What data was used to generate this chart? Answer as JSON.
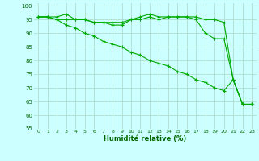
{
  "title": "",
  "xlabel": "Humidité relative (%)",
  "ylabel": "",
  "bg_color": "#ccffff",
  "grid_color": "#b0ddd0",
  "line_color": "#00aa00",
  "marker_color": "#00aa00",
  "ylim": [
    55,
    101
  ],
  "xlim": [
    -0.5,
    23.5
  ],
  "yticks": [
    55,
    60,
    65,
    70,
    75,
    80,
    85,
    90,
    95,
    100
  ],
  "xticks": [
    0,
    1,
    2,
    3,
    4,
    5,
    6,
    7,
    8,
    9,
    10,
    11,
    12,
    13,
    14,
    15,
    16,
    17,
    18,
    19,
    20,
    21,
    22,
    23
  ],
  "xtick_labels": [
    "0",
    "1",
    "2",
    "3",
    "4",
    "5",
    "6",
    "7",
    "8",
    "9",
    "10",
    "11",
    "12",
    "13",
    "14",
    "15",
    "16",
    "17",
    "18",
    "19",
    "20",
    "21",
    "22",
    "23"
  ],
  "series": [
    [
      96,
      96,
      96,
      97,
      95,
      95,
      94,
      94,
      94,
      94,
      95,
      96,
      97,
      96,
      96,
      96,
      96,
      96,
      95,
      95,
      94,
      73,
      64,
      64
    ],
    [
      96,
      96,
      95,
      95,
      95,
      95,
      94,
      94,
      93,
      93,
      95,
      95,
      96,
      95,
      96,
      96,
      96,
      95,
      90,
      88,
      88,
      73,
      64,
      64
    ],
    [
      96,
      96,
      95,
      93,
      92,
      90,
      89,
      87,
      86,
      85,
      83,
      82,
      80,
      79,
      78,
      76,
      75,
      73,
      72,
      70,
      69,
      73,
      64,
      64
    ]
  ]
}
